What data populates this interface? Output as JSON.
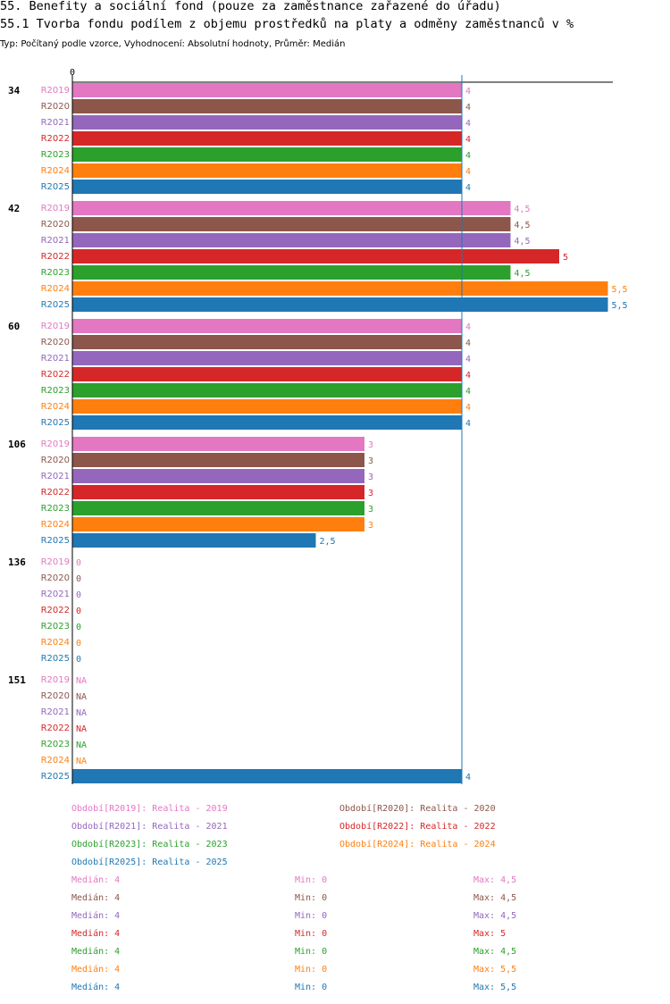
{
  "header": {
    "title": "55. Benefity a sociální fond (pouze za zaměstnance zařazené do úřadu)",
    "subtitle": "55.1 Tvorba fondu podílem z objemu prostředků na platy a odměny zaměstnanců v %",
    "meta": "Typ: Počítaný podle vzorce, Vyhodnocení: Absolutní hodnoty, Průměr: Medián"
  },
  "colors": {
    "R2019": "#e377c2",
    "R2020": "#8c564b",
    "R2021": "#9467bd",
    "R2022": "#d62728",
    "R2023": "#2ca02c",
    "R2024": "#ff7f0e",
    "R2025": "#1f77b4",
    "median_line": "#1f77b4"
  },
  "chart_data": {
    "type": "bar",
    "orientation": "horizontal",
    "x_axis_tick": "0",
    "xlim": [
      0,
      6.0
    ],
    "median_reference": 4,
    "groups": [
      {
        "label": "34",
        "bars": [
          {
            "period": "R2019",
            "value": 4,
            "label": "4"
          },
          {
            "period": "R2020",
            "value": 4,
            "label": "4"
          },
          {
            "period": "R2021",
            "value": 4,
            "label": "4"
          },
          {
            "period": "R2022",
            "value": 4,
            "label": "4"
          },
          {
            "period": "R2023",
            "value": 4,
            "label": "4"
          },
          {
            "period": "R2024",
            "value": 4,
            "label": "4"
          },
          {
            "period": "R2025",
            "value": 4,
            "label": "4"
          }
        ]
      },
      {
        "label": "42",
        "bars": [
          {
            "period": "R2019",
            "value": 4.5,
            "label": "4,5"
          },
          {
            "period": "R2020",
            "value": 4.5,
            "label": "4,5"
          },
          {
            "period": "R2021",
            "value": 4.5,
            "label": "4,5"
          },
          {
            "period": "R2022",
            "value": 5,
            "label": "5"
          },
          {
            "period": "R2023",
            "value": 4.5,
            "label": "4,5"
          },
          {
            "period": "R2024",
            "value": 5.5,
            "label": "5,5"
          },
          {
            "period": "R2025",
            "value": 5.5,
            "label": "5,5"
          }
        ]
      },
      {
        "label": "60",
        "bars": [
          {
            "period": "R2019",
            "value": 4,
            "label": "4"
          },
          {
            "period": "R2020",
            "value": 4,
            "label": "4"
          },
          {
            "period": "R2021",
            "value": 4,
            "label": "4"
          },
          {
            "period": "R2022",
            "value": 4,
            "label": "4"
          },
          {
            "period": "R2023",
            "value": 4,
            "label": "4"
          },
          {
            "period": "R2024",
            "value": 4,
            "label": "4"
          },
          {
            "period": "R2025",
            "value": 4,
            "label": "4"
          }
        ]
      },
      {
        "label": "106",
        "bars": [
          {
            "period": "R2019",
            "value": 3,
            "label": "3"
          },
          {
            "period": "R2020",
            "value": 3,
            "label": "3"
          },
          {
            "period": "R2021",
            "value": 3,
            "label": "3"
          },
          {
            "period": "R2022",
            "value": 3,
            "label": "3"
          },
          {
            "period": "R2023",
            "value": 3,
            "label": "3"
          },
          {
            "period": "R2024",
            "value": 3,
            "label": "3"
          },
          {
            "period": "R2025",
            "value": 2.5,
            "label": "2,5"
          }
        ]
      },
      {
        "label": "136",
        "bars": [
          {
            "period": "R2019",
            "value": 0,
            "label": "0"
          },
          {
            "period": "R2020",
            "value": 0,
            "label": "0"
          },
          {
            "period": "R2021",
            "value": 0,
            "label": "0"
          },
          {
            "period": "R2022",
            "value": 0,
            "label": "0"
          },
          {
            "period": "R2023",
            "value": 0,
            "label": "0"
          },
          {
            "period": "R2024",
            "value": 0,
            "label": "0"
          },
          {
            "period": "R2025",
            "value": 0,
            "label": "0"
          }
        ]
      },
      {
        "label": "151",
        "bars": [
          {
            "period": "R2019",
            "value": null,
            "label": "NA"
          },
          {
            "period": "R2020",
            "value": null,
            "label": "NA"
          },
          {
            "period": "R2021",
            "value": null,
            "label": "NA"
          },
          {
            "period": "R2022",
            "value": null,
            "label": "NA"
          },
          {
            "period": "R2023",
            "value": null,
            "label": "NA"
          },
          {
            "period": "R2024",
            "value": null,
            "label": "NA"
          },
          {
            "period": "R2025",
            "value": 4,
            "label": "4"
          }
        ]
      }
    ]
  },
  "legend": {
    "periods": [
      {
        "key": "R2019",
        "text": "Období[R2019]: Realita - 2019"
      },
      {
        "key": "R2020",
        "text": "Období[R2020]: Realita - 2020"
      },
      {
        "key": "R2021",
        "text": "Období[R2021]: Realita - 2021"
      },
      {
        "key": "R2022",
        "text": "Období[R2022]: Realita - 2022"
      },
      {
        "key": "R2023",
        "text": "Období[R2023]: Realita - 2023"
      },
      {
        "key": "R2024",
        "text": "Období[R2024]: Realita - 2024"
      },
      {
        "key": "R2025",
        "text": "Období[R2025]: Realita - 2025"
      }
    ],
    "stats": [
      {
        "key": "R2019",
        "median": "Medián: 4",
        "min": "Min: 0",
        "max": "Max: 4,5"
      },
      {
        "key": "R2020",
        "median": "Medián: 4",
        "min": "Min: 0",
        "max": "Max: 4,5"
      },
      {
        "key": "R2021",
        "median": "Medián: 4",
        "min": "Min: 0",
        "max": "Max: 4,5"
      },
      {
        "key": "R2022",
        "median": "Medián: 4",
        "min": "Min: 0",
        "max": "Max: 5"
      },
      {
        "key": "R2023",
        "median": "Medián: 4",
        "min": "Min: 0",
        "max": "Max: 4,5"
      },
      {
        "key": "R2024",
        "median": "Medián: 4",
        "min": "Min: 0",
        "max": "Max: 5,5"
      },
      {
        "key": "R2025",
        "median": "Medián: 4",
        "min": "Min: 0",
        "max": "Max: 5,5"
      }
    ]
  }
}
